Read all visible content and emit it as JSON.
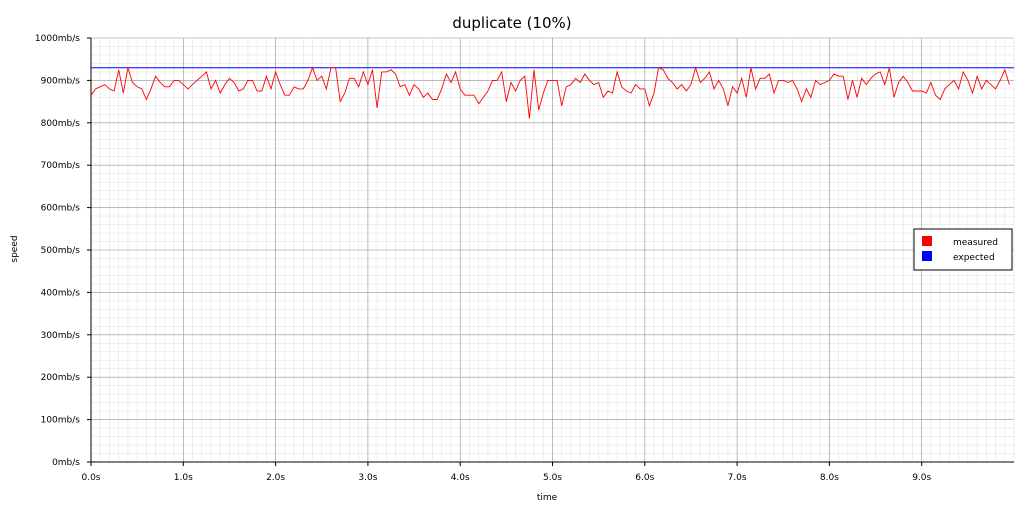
{
  "chart_data": {
    "type": "line",
    "title": "duplicate (10%)",
    "xlabel": "time",
    "ylabel": "speed",
    "xlim": [
      0,
      10
    ],
    "ylim": [
      0,
      1000
    ],
    "x_ticks": [
      {
        "value": 0,
        "label": "0.0s"
      },
      {
        "value": 1,
        "label": "1.0s"
      },
      {
        "value": 2,
        "label": "2.0s"
      },
      {
        "value": 3,
        "label": "3.0s"
      },
      {
        "value": 4,
        "label": "4.0s"
      },
      {
        "value": 5,
        "label": "5.0s"
      },
      {
        "value": 6,
        "label": "6.0s"
      },
      {
        "value": 7,
        "label": "7.0s"
      },
      {
        "value": 8,
        "label": "8.0s"
      },
      {
        "value": 9,
        "label": "9.0s"
      }
    ],
    "y_ticks": [
      {
        "value": 0,
        "label": "0mb/s"
      },
      {
        "value": 100,
        "label": "100mb/s"
      },
      {
        "value": 200,
        "label": "200mb/s"
      },
      {
        "value": 300,
        "label": "300mb/s"
      },
      {
        "value": 400,
        "label": "400mb/s"
      },
      {
        "value": 500,
        "label": "500mb/s"
      },
      {
        "value": 600,
        "label": "600mb/s"
      },
      {
        "value": 700,
        "label": "700mb/s"
      },
      {
        "value": 800,
        "label": "800mb/s"
      },
      {
        "value": 900,
        "label": "900mb/s"
      },
      {
        "value": 1000,
        "label": "1000mb/s"
      }
    ],
    "grid": true,
    "legend_position": "right",
    "series": [
      {
        "name": "measured",
        "color": "#ff0000",
        "sample_interval": 0.05,
        "values": [
          865,
          880,
          885,
          890,
          880,
          875,
          925,
          870,
          930,
          895,
          885,
          880,
          855,
          880,
          910,
          895,
          885,
          885,
          900,
          900,
          890,
          880,
          890,
          900,
          910,
          920,
          880,
          900,
          870,
          890,
          905,
          895,
          875,
          880,
          900,
          900,
          875,
          875,
          910,
          880,
          920,
          890,
          865,
          865,
          885,
          880,
          880,
          900,
          930,
          900,
          910,
          880,
          930,
          930,
          850,
          870,
          905,
          905,
          885,
          920,
          890,
          925,
          835,
          920,
          920,
          925,
          915,
          885,
          890,
          865,
          890,
          880,
          860,
          870,
          855,
          855,
          880,
          915,
          895,
          920,
          880,
          865,
          865,
          865,
          845,
          860,
          875,
          900,
          900,
          920,
          850,
          895,
          875,
          900,
          910,
          810,
          925,
          830,
          870,
          900,
          900,
          900,
          840,
          885,
          890,
          905,
          895,
          915,
          900,
          890,
          895,
          860,
          875,
          870,
          920,
          885,
          875,
          870,
          890,
          880,
          880,
          840,
          870,
          930,
          925,
          905,
          895,
          880,
          890,
          875,
          890,
          930,
          895,
          905,
          920,
          880,
          900,
          880,
          840,
          885,
          870,
          905,
          860,
          930,
          880,
          905,
          905,
          915,
          870,
          900,
          900,
          895,
          900,
          880,
          850,
          880,
          860,
          900,
          890,
          895,
          900,
          915,
          910,
          910,
          855,
          900,
          860,
          905,
          890,
          905,
          915,
          920,
          890,
          930,
          860,
          895,
          910,
          895,
          875,
          875,
          875,
          870,
          895,
          865,
          855,
          880,
          890,
          900,
          880,
          920,
          900,
          870,
          910,
          880,
          900,
          890,
          880,
          900,
          925,
          890
        ]
      },
      {
        "name": "expected",
        "color": "#0000ff",
        "constant_value": 930
      }
    ]
  }
}
